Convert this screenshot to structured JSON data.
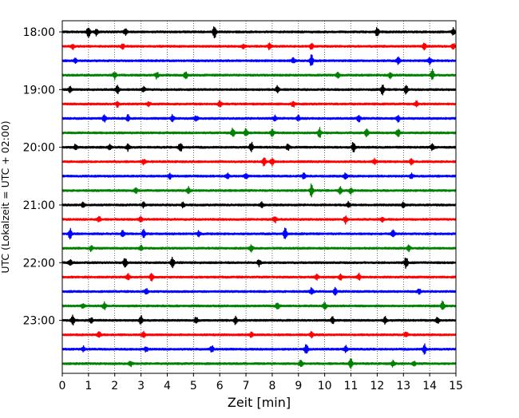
{
  "chart_data": {
    "type": "line",
    "title": "",
    "xlabel": "Zeit  [min]",
    "ylabel": "UTC (Lokalzeit = UTC + 02:00)",
    "xlim": [
      0,
      15
    ],
    "x_ticks": [
      0,
      1,
      2,
      3,
      4,
      5,
      6,
      7,
      8,
      9,
      10,
      11,
      12,
      13,
      14,
      15
    ],
    "x_tick_labels": [
      "0",
      "1",
      "2",
      "3",
      "4",
      "5",
      "6",
      "7",
      "8",
      "9",
      "10",
      "11",
      "12",
      "13",
      "14",
      "15"
    ],
    "y_tick_labels": [
      "18:00",
      "19:00",
      "20:00",
      "21:00",
      "22:00",
      "23:00"
    ],
    "y_tick_rows": [
      0,
      4,
      8,
      12,
      16,
      20
    ],
    "grid": "vertical dotted",
    "legend": "none",
    "colors": [
      "#000000",
      "#ff0000",
      "#0000ff",
      "#008000"
    ],
    "series": [
      {
        "start": "18:00",
        "bursts": [
          [
            1.0,
            0.9
          ],
          [
            1.3,
            0.6
          ],
          [
            2.4,
            0.5
          ],
          [
            5.8,
            1.0
          ],
          [
            12.0,
            0.7
          ],
          [
            14.9,
            0.6
          ]
        ]
      },
      {
        "start": "18:15",
        "bursts": [
          [
            0.4,
            0.4
          ],
          [
            2.3,
            0.4
          ],
          [
            6.9,
            0.4
          ],
          [
            7.9,
            0.5
          ],
          [
            9.5,
            0.5
          ],
          [
            13.8,
            0.5
          ],
          [
            14.9,
            0.4
          ]
        ]
      },
      {
        "start": "18:30",
        "bursts": [
          [
            0.5,
            0.3
          ],
          [
            8.8,
            0.4
          ],
          [
            9.5,
            1.0
          ],
          [
            12.8,
            0.5
          ],
          [
            14.0,
            0.5
          ]
        ]
      },
      {
        "start": "18:45",
        "bursts": [
          [
            2.0,
            0.6
          ],
          [
            3.6,
            0.5
          ],
          [
            4.7,
            0.6
          ],
          [
            10.5,
            0.5
          ],
          [
            12.5,
            0.4
          ],
          [
            14.1,
            0.8
          ]
        ]
      },
      {
        "start": "19:00",
        "bursts": [
          [
            0.3,
            0.4
          ],
          [
            2.1,
            0.6
          ],
          [
            3.1,
            0.4
          ],
          [
            8.2,
            0.5
          ],
          [
            12.2,
            0.9
          ],
          [
            13.1,
            0.6
          ]
        ]
      },
      {
        "start": "19:15",
        "bursts": [
          [
            2.1,
            0.4
          ],
          [
            3.3,
            0.3
          ],
          [
            6.0,
            0.4
          ],
          [
            8.8,
            0.5
          ],
          [
            13.5,
            0.4
          ]
        ]
      },
      {
        "start": "19:30",
        "bursts": [
          [
            1.6,
            0.6
          ],
          [
            2.5,
            0.5
          ],
          [
            4.2,
            0.5
          ],
          [
            5.1,
            0.4
          ],
          [
            8.1,
            0.4
          ],
          [
            9.0,
            0.4
          ],
          [
            11.3,
            0.5
          ],
          [
            12.8,
            0.5
          ]
        ]
      },
      {
        "start": "19:45",
        "bursts": [
          [
            6.5,
            0.7
          ],
          [
            7.0,
            0.6
          ],
          [
            8.0,
            0.6
          ],
          [
            9.8,
            0.8
          ],
          [
            11.6,
            0.6
          ],
          [
            12.8,
            0.7
          ]
        ]
      },
      {
        "start": "20:00",
        "bursts": [
          [
            0.5,
            0.4
          ],
          [
            1.8,
            0.4
          ],
          [
            2.5,
            0.5
          ],
          [
            4.5,
            0.8
          ],
          [
            7.2,
            0.8
          ],
          [
            8.6,
            0.5
          ],
          [
            11.1,
            0.9
          ],
          [
            14.1,
            0.5
          ]
        ]
      },
      {
        "start": "20:15",
        "bursts": [
          [
            3.1,
            0.4
          ],
          [
            7.7,
            0.7
          ],
          [
            8.0,
            0.6
          ],
          [
            11.9,
            0.4
          ],
          [
            13.3,
            0.5
          ]
        ]
      },
      {
        "start": "20:30",
        "bursts": [
          [
            4.1,
            0.4
          ],
          [
            6.3,
            0.4
          ],
          [
            7.0,
            0.4
          ],
          [
            9.2,
            0.4
          ],
          [
            10.8,
            0.5
          ],
          [
            13.3,
            0.4
          ]
        ]
      },
      {
        "start": "20:45",
        "bursts": [
          [
            2.8,
            0.4
          ],
          [
            4.8,
            0.5
          ],
          [
            9.5,
            1.0
          ],
          [
            10.6,
            0.6
          ],
          [
            11.0,
            0.5
          ]
        ]
      },
      {
        "start": "21:00",
        "bursts": [
          [
            0.8,
            0.4
          ],
          [
            3.1,
            0.4
          ],
          [
            4.6,
            0.4
          ],
          [
            7.6,
            0.5
          ],
          [
            10.9,
            0.5
          ],
          [
            13.0,
            0.4
          ]
        ]
      },
      {
        "start": "21:15",
        "bursts": [
          [
            1.4,
            0.4
          ],
          [
            3.0,
            0.4
          ],
          [
            8.1,
            0.5
          ],
          [
            10.8,
            0.6
          ],
          [
            12.2,
            0.4
          ]
        ]
      },
      {
        "start": "21:30",
        "bursts": [
          [
            0.3,
            0.8
          ],
          [
            2.3,
            0.6
          ],
          [
            3.1,
            0.6
          ],
          [
            5.2,
            0.4
          ],
          [
            8.5,
            0.9
          ],
          [
            12.6,
            0.6
          ]
        ]
      },
      {
        "start": "21:45",
        "bursts": [
          [
            1.1,
            0.4
          ],
          [
            3.0,
            0.4
          ],
          [
            7.2,
            0.6
          ],
          [
            13.2,
            0.5
          ]
        ]
      },
      {
        "start": "22:00",
        "bursts": [
          [
            0.3,
            0.5
          ],
          [
            2.4,
            0.9
          ],
          [
            4.2,
            0.8
          ],
          [
            7.5,
            0.5
          ],
          [
            13.1,
            1.0
          ]
        ]
      },
      {
        "start": "22:15",
        "bursts": [
          [
            2.5,
            0.5
          ],
          [
            3.4,
            0.5
          ],
          [
            9.7,
            0.4
          ],
          [
            10.6,
            0.4
          ],
          [
            11.3,
            0.5
          ]
        ]
      },
      {
        "start": "22:30",
        "bursts": [
          [
            3.2,
            0.4
          ],
          [
            9.5,
            0.6
          ],
          [
            10.4,
            0.5
          ],
          [
            13.6,
            0.4
          ]
        ]
      },
      {
        "start": "22:45",
        "bursts": [
          [
            0.8,
            0.4
          ],
          [
            1.6,
            0.5
          ],
          [
            8.2,
            0.6
          ],
          [
            10.0,
            0.6
          ],
          [
            14.5,
            0.7
          ]
        ]
      },
      {
        "start": "23:00",
        "bursts": [
          [
            0.4,
            0.8
          ],
          [
            1.1,
            0.4
          ],
          [
            3.0,
            0.7
          ],
          [
            5.1,
            0.6
          ],
          [
            6.6,
            0.6
          ],
          [
            10.3,
            0.5
          ],
          [
            12.3,
            0.5
          ],
          [
            14.3,
            0.5
          ]
        ]
      },
      {
        "start": "23:15",
        "bursts": [
          [
            1.4,
            0.4
          ],
          [
            3.1,
            0.4
          ],
          [
            7.2,
            0.4
          ],
          [
            9.5,
            0.4
          ],
          [
            13.1,
            0.4
          ]
        ]
      },
      {
        "start": "23:30",
        "bursts": [
          [
            0.8,
            0.4
          ],
          [
            3.2,
            0.4
          ],
          [
            5.7,
            0.5
          ],
          [
            9.3,
            0.8
          ],
          [
            10.8,
            0.6
          ],
          [
            13.8,
            0.8
          ]
        ]
      },
      {
        "start": "23:45",
        "bursts": [
          [
            2.6,
            0.4
          ],
          [
            9.1,
            0.7
          ],
          [
            11.0,
            0.8
          ],
          [
            12.6,
            0.5
          ],
          [
            13.4,
            0.4
          ]
        ]
      }
    ]
  }
}
